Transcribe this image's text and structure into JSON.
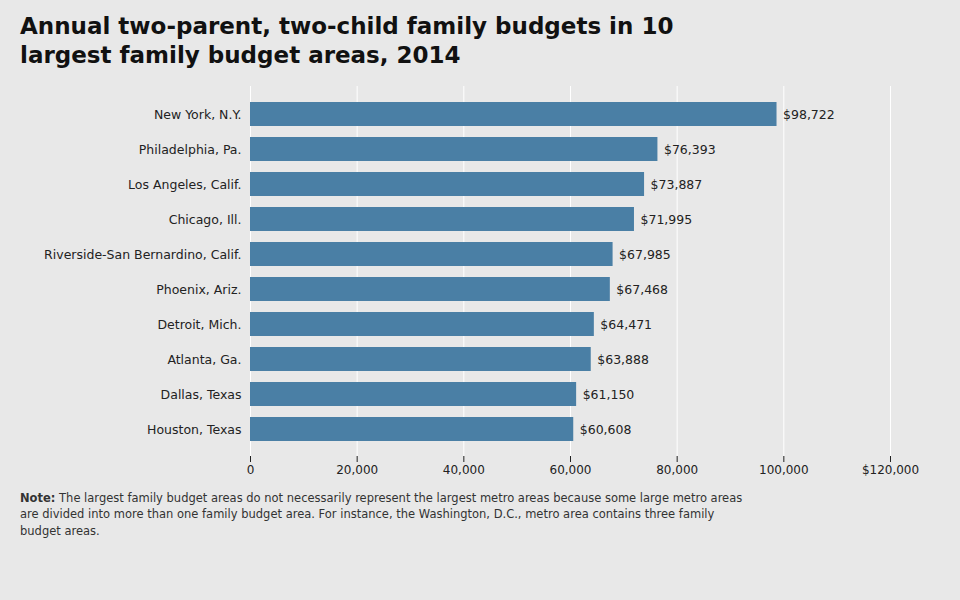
{
  "chart_data": {
    "type": "bar",
    "orientation": "horizontal",
    "title": "Annual two-parent, two-child family budgets in 10\nlargest family budget areas, 2014",
    "caption": "Note: The largest family budget areas do not necessarily represent the largest metro areas because some large metro areas\nare divided into more than one family budget area. For instance, the Washington, D.C., metro area contains three family\nbudget areas.",
    "categories": [
      "Houston, Texas",
      "Dallas, Texas",
      "Atlanta, Ga.",
      "Detroit, Mich.",
      "Phoenix, Ariz.",
      "Riverside-San Bernardino, Calif.",
      "Chicago, Ill.",
      "Los Angeles, Calif.",
      "Philadelphia, Pa.",
      "New York, N.Y."
    ],
    "values": [
      60608,
      61150,
      63888,
      64471,
      67468,
      67985,
      71995,
      73887,
      76393,
      98722
    ],
    "value_labels": [
      "$60,608",
      "$61,150",
      "$63,888",
      "$64,471",
      "$67,468",
      "$67,985",
      "$71,995",
      "$73,887",
      "$76,393",
      "$98,722"
    ],
    "data_labels": true,
    "color": "#4a7fa5",
    "xlim": [
      0,
      120000
    ],
    "xticks": [
      0,
      {
        "value": 20000,
        "label": "20,000"
      },
      {
        "value": 40000,
        "label": "40,000"
      },
      {
        "value": 60000,
        "label": "60,000"
      },
      {
        "value": 80000,
        "label": "80,000"
      },
      {
        "value": 100000,
        "label": "100,000"
      },
      {
        "value": 120000,
        "label": "$120,000"
      }
    ],
    "grid": true
  }
}
